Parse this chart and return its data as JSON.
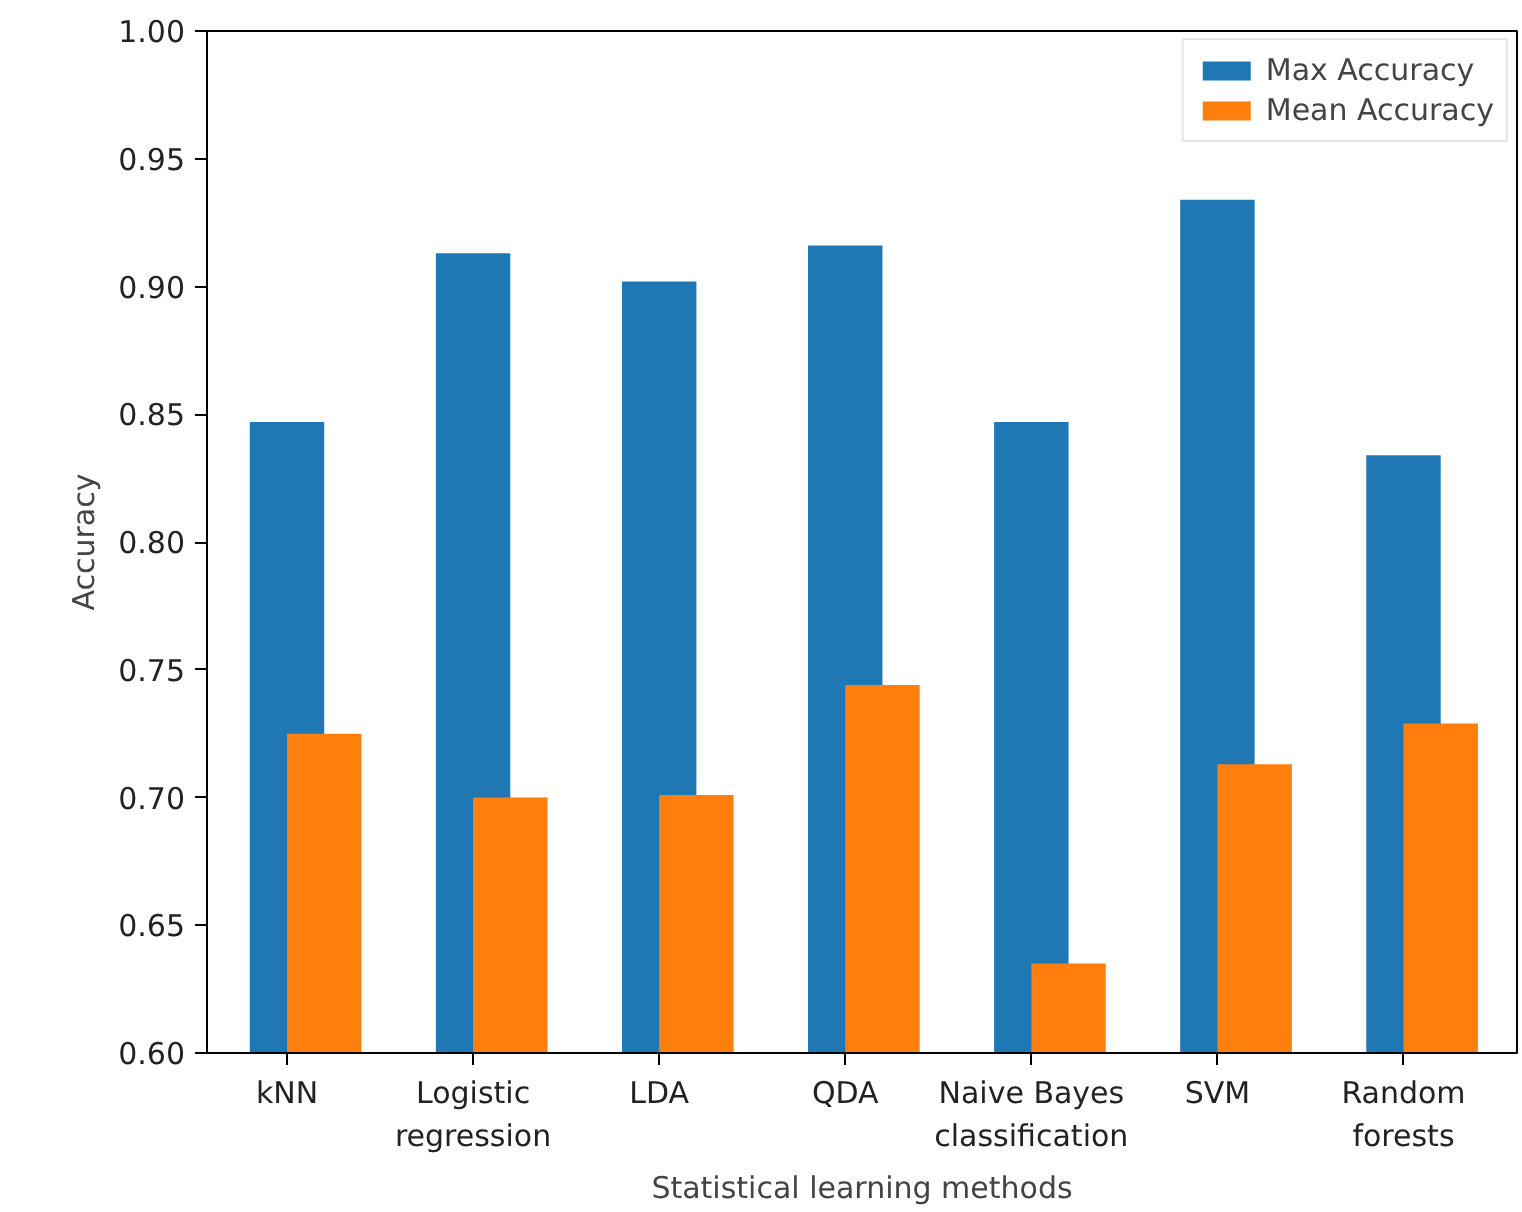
{
  "chart_data": {
    "type": "bar",
    "xlabel": "Statistical learning methods",
    "ylabel": "Accuracy",
    "categories": [
      "kNN",
      "Logistic\nregression",
      "LDA",
      "QDA",
      "Naive Bayes\nclassification",
      "SVM",
      "Random\nforests"
    ],
    "series": [
      {
        "name": "Max Accuracy",
        "color": "#1f77b4",
        "values": [
          0.847,
          0.913,
          0.902,
          0.916,
          0.847,
          0.934,
          0.834
        ]
      },
      {
        "name": "Mean Accuracy",
        "color": "#ff7f0e",
        "values": [
          0.725,
          0.7,
          0.701,
          0.744,
          0.635,
          0.713,
          0.729
        ]
      }
    ],
    "ylim": [
      0.6,
      1.0
    ],
    "yticks": [
      {
        "value": 0.6,
        "label": "0.60"
      },
      {
        "value": 0.65,
        "label": "0.65"
      },
      {
        "value": 0.7,
        "label": "0.70"
      },
      {
        "value": 0.75,
        "label": "0.75"
      },
      {
        "value": 0.8,
        "label": "0.80"
      },
      {
        "value": 0.85,
        "label": "0.85"
      },
      {
        "value": 0.9,
        "label": "0.90"
      },
      {
        "value": 0.95,
        "label": "0.95"
      },
      {
        "value": 1.0,
        "label": "1.00"
      }
    ],
    "grid": false,
    "legend": "top right"
  }
}
